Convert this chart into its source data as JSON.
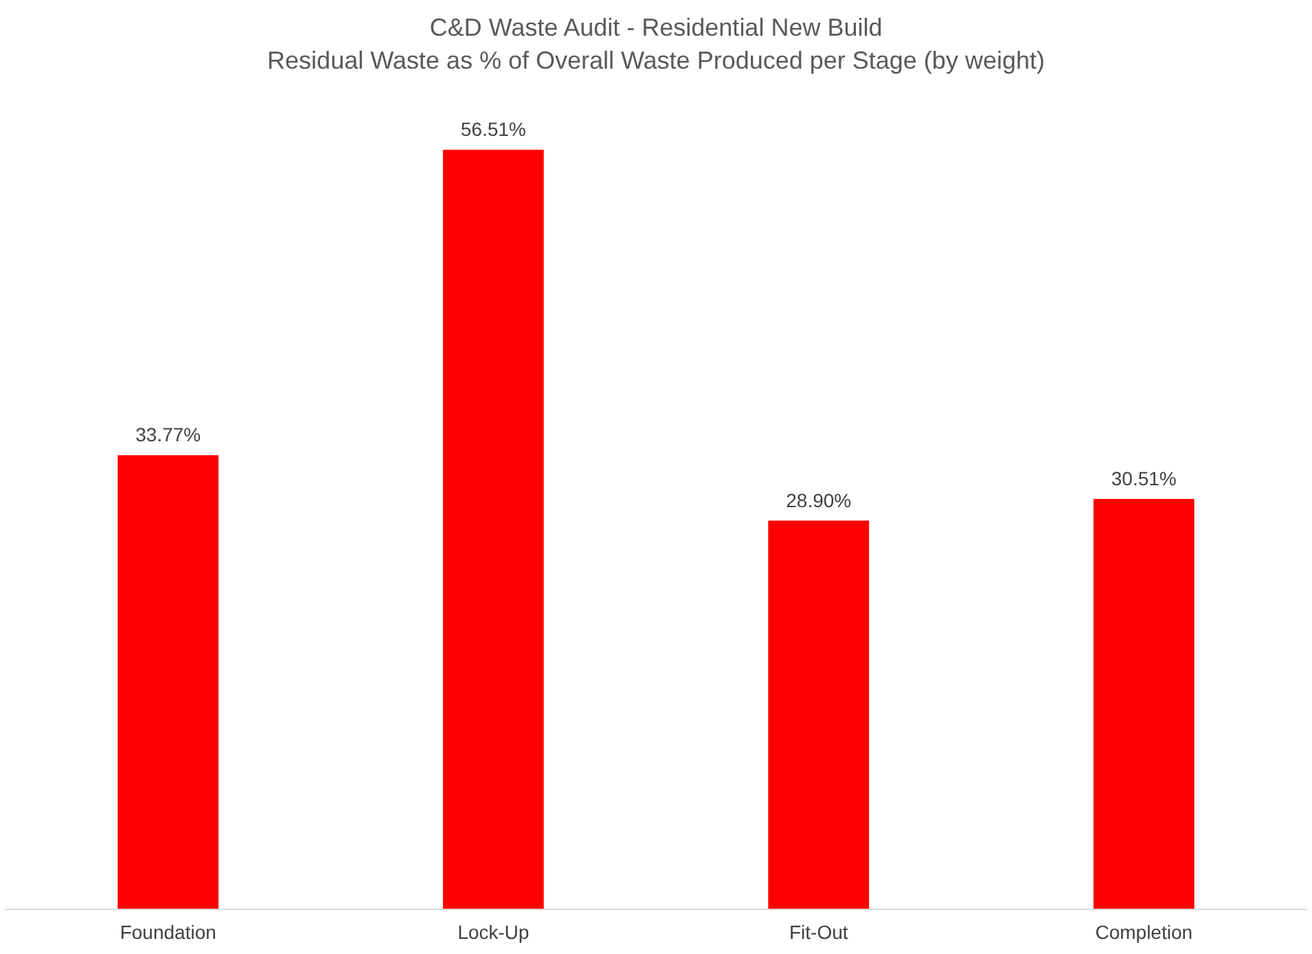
{
  "chart_data": {
    "type": "bar",
    "title": "C&D Waste Audit - Residential New Build",
    "subtitle": "Residual Waste as % of Overall Waste Produced per Stage (by weight)",
    "categories": [
      "Foundation",
      "Lock-Up",
      "Fit-Out",
      "Completion"
    ],
    "values": [
      33.77,
      56.51,
      28.9,
      30.51
    ],
    "value_labels": [
      "33.77%",
      "56.51%",
      "28.90%",
      "30.51%"
    ],
    "color": "#ff0000"
  }
}
